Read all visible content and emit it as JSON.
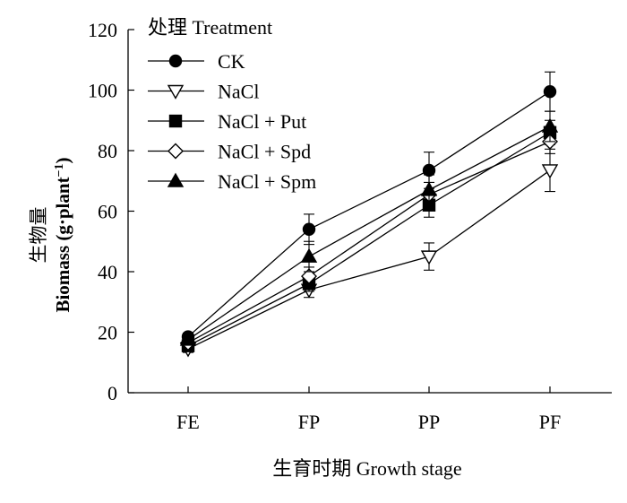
{
  "chart_data": {
    "type": "line",
    "xlabel": "生育时期  Growth stage",
    "ylabel_cn": "生物量",
    "ylabel_en": "Biomass (g·plant",
    "ylabel_sup": "−1",
    "ylabel_close": ")",
    "legend_title": "处理 Treatment",
    "legend_position": "top-left",
    "categories": [
      "FE",
      "FP",
      "PP",
      "PF"
    ],
    "ylim": [
      0,
      120
    ],
    "yticks": [
      0,
      20,
      40,
      60,
      80,
      100,
      120
    ],
    "grid": false,
    "series": [
      {
        "name": "CK",
        "marker": "circle-filled",
        "values": [
          18.5,
          54,
          73.5,
          99.5
        ],
        "errors": [
          1.2,
          5,
          6,
          6.5
        ]
      },
      {
        "name": "NaCl",
        "marker": "triangle-down-open",
        "values": [
          14.5,
          34,
          45,
          73.5
        ],
        "errors": [
          1.2,
          2.5,
          4.5,
          7
        ]
      },
      {
        "name": "NaCl + Put",
        "marker": "square-filled",
        "values": [
          15.5,
          36,
          62,
          86
        ],
        "errors": [
          1.2,
          2.5,
          4,
          4
        ]
      },
      {
        "name": "NaCl + Spd",
        "marker": "diamond-open",
        "values": [
          16.5,
          38.5,
          65.5,
          83
        ],
        "errors": [
          1.2,
          3,
          4,
          4
        ]
      },
      {
        "name": "NaCl + Spm",
        "marker": "triangle-up-filled",
        "values": [
          17.5,
          45,
          67,
          88
        ],
        "errors": [
          1.2,
          5,
          5,
          5
        ]
      }
    ]
  }
}
